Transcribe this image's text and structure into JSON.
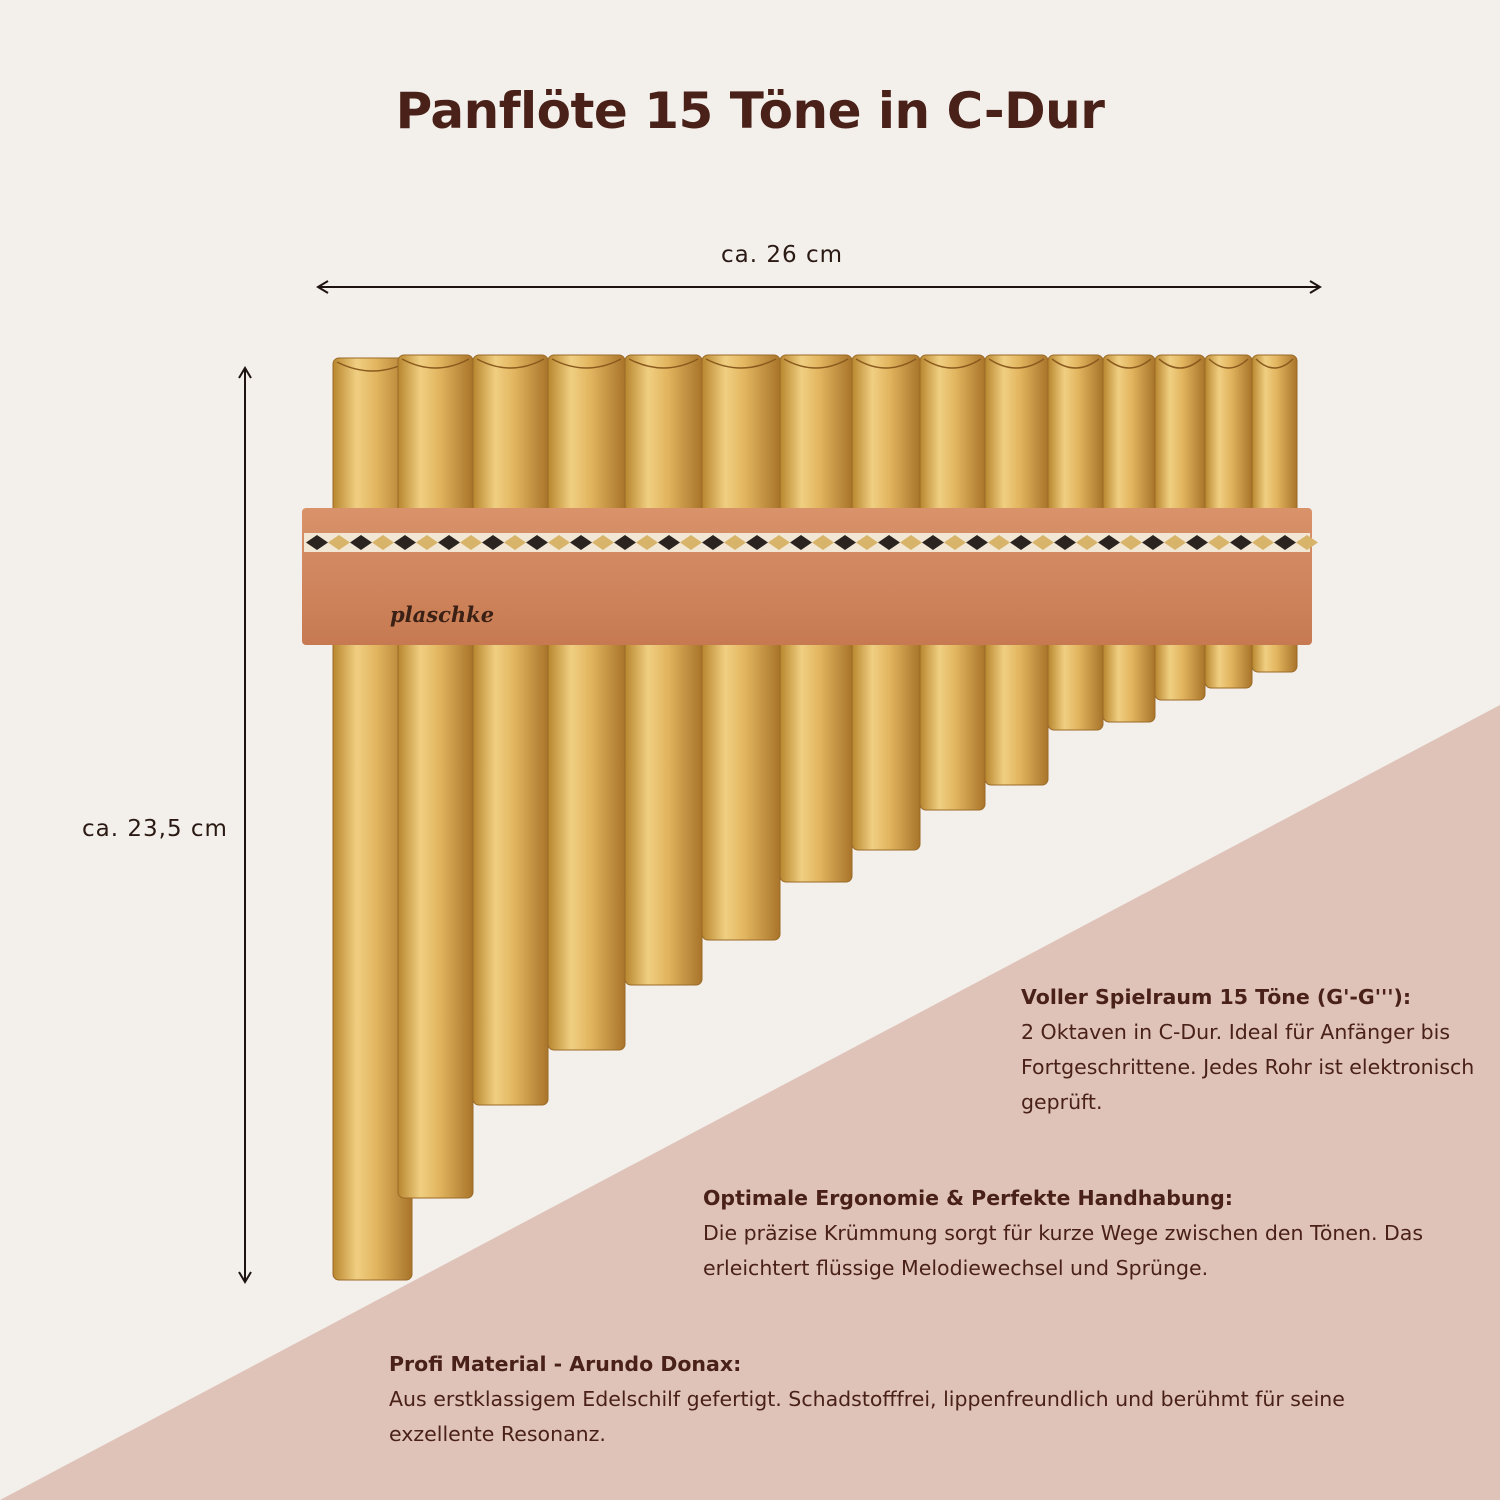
{
  "header": {
    "title": "Panflöte 15 Töne in C-Dur"
  },
  "dimensions": {
    "width": "ca. 26 cm",
    "height": "ca. 23,5 cm"
  },
  "brand": "plaschke",
  "features": [
    {
      "heading": "Voller Spielraum 15 Töne (G'-G'''):",
      "text": "2 Oktaven in C-Dur. Ideal für Anfänger bis Fortgeschrittene. Jedes Rohr ist elektronisch geprüft."
    },
    {
      "heading": "Optimale Ergonomie & Perfekte Handhabung:",
      "text": "Die präzise Krümmung sorgt für kurze Wege zwischen den Tönen. Das erleichtert flüssige Melodiewechsel und Sprünge."
    },
    {
      "heading": "Profi Material - Arundo Donax:",
      "text": "Aus erstklassigem Edelschilf gefertigt. Schadstofffrei, lippenfreundlich und berühmt für seine exzellente Resonanz."
    }
  ]
}
